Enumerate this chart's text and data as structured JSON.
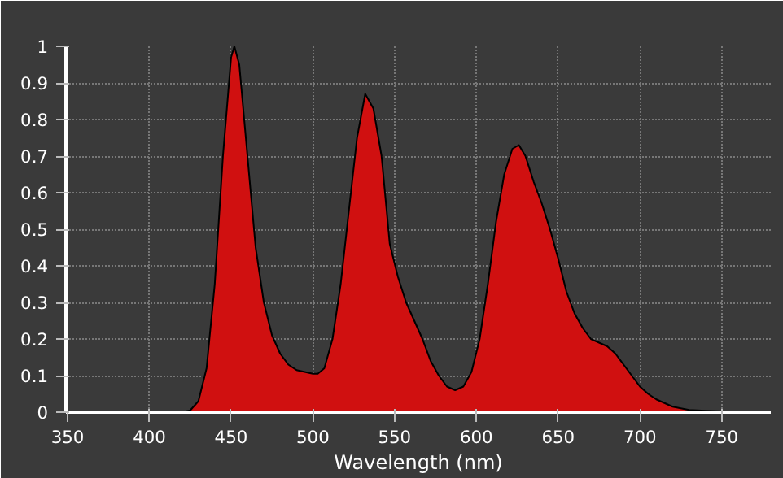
{
  "chart_data": {
    "type": "area",
    "xlabel": "Wavelength (nm)",
    "x": [
      380,
      420,
      425,
      430,
      435,
      440,
      445,
      450,
      452,
      455,
      460,
      465,
      470,
      475,
      480,
      485,
      490,
      495,
      500,
      503,
      507,
      512,
      517,
      522,
      527,
      532,
      537,
      542,
      547,
      552,
      557,
      562,
      567,
      572,
      577,
      582,
      587,
      592,
      597,
      602,
      607,
      612,
      617,
      622,
      626,
      630,
      635,
      640,
      645,
      650,
      655,
      660,
      665,
      670,
      675,
      680,
      685,
      690,
      695,
      700,
      705,
      710,
      720,
      730,
      740,
      750,
      760,
      775
    ],
    "series": [
      {
        "values": [
          0,
          0,
          0.005,
          0.03,
          0.12,
          0.35,
          0.7,
          0.97,
          1.0,
          0.95,
          0.7,
          0.45,
          0.3,
          0.21,
          0.16,
          0.13,
          0.115,
          0.11,
          0.105,
          0.105,
          0.12,
          0.2,
          0.35,
          0.55,
          0.75,
          0.87,
          0.83,
          0.7,
          0.46,
          0.37,
          0.3,
          0.25,
          0.2,
          0.14,
          0.1,
          0.07,
          0.06,
          0.07,
          0.11,
          0.2,
          0.35,
          0.52,
          0.65,
          0.72,
          0.73,
          0.7,
          0.63,
          0.57,
          0.5,
          0.42,
          0.33,
          0.27,
          0.23,
          0.2,
          0.19,
          0.18,
          0.16,
          0.13,
          0.1,
          0.07,
          0.05,
          0.035,
          0.015,
          0.006,
          0.004,
          0.002,
          0.001,
          0
        ],
        "color": "#d01010"
      }
    ],
    "xlim": [
      349,
      780
    ],
    "ylim": [
      0,
      1
    ],
    "xticks": [
      350,
      400,
      450,
      500,
      550,
      600,
      650,
      700,
      750
    ],
    "yticks": [
      0,
      0.1,
      0.2,
      0.3,
      0.4,
      0.5,
      0.6,
      0.7,
      0.8,
      0.9,
      1
    ],
    "grid": true
  }
}
